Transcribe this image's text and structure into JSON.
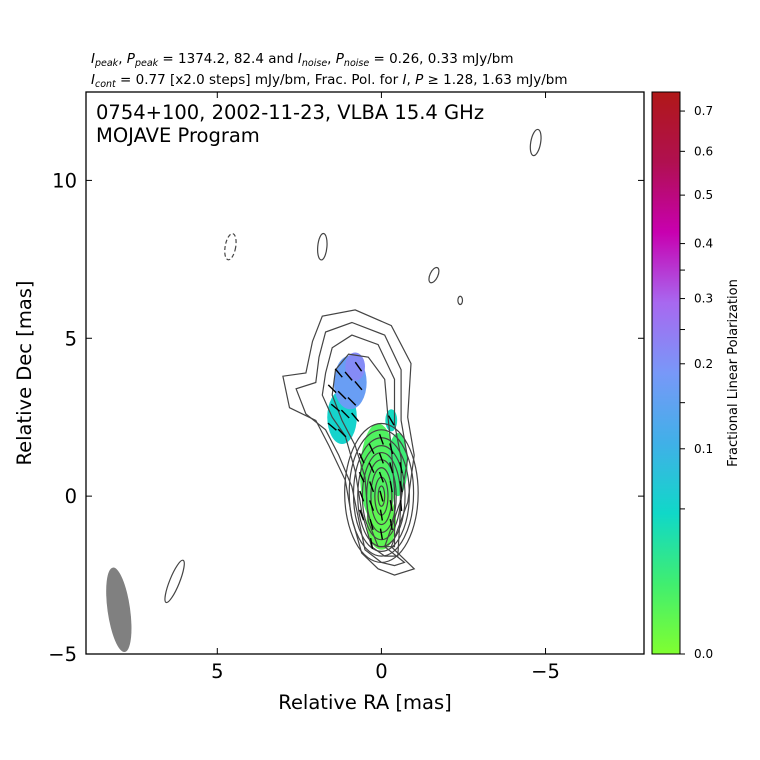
{
  "header": {
    "line1": "I_peak, P_peak = 1374.2, 82.4 and I_noise, P_noise = 0.26, 0.33 mJy/bm",
    "line2": "I_cont = 0.77 [x2.0 steps] mJy/bm, Frac. Pol. for I, P ≥ 1.28, 1.63 mJy/bm"
  },
  "panel_title": [
    "0754+100, 2002-11-23, VLBA 15.4 GHz",
    "MOJAVE Program"
  ],
  "chart_data": {
    "type": "contour",
    "xlabel": "Relative RA [mas]",
    "ylabel": "Relative Dec [mas]",
    "xlim": [
      9,
      -8
    ],
    "ylim": [
      -5,
      12.8
    ],
    "xticks": [
      5,
      0,
      -5
    ],
    "xtick_labels": [
      "5",
      "0",
      "−5"
    ],
    "yticks": [
      -5,
      0,
      5,
      10
    ],
    "ytick_labels": [
      "−5",
      "0",
      "5",
      "10"
    ],
    "beam": {
      "x": 8.0,
      "y": -3.6,
      "major_mas": 1.35,
      "minor_mas": 0.55,
      "pa_deg": -8
    },
    "core_contours": {
      "center": [
        0.0,
        0.0
      ],
      "levels": [
        {
          "dx": 0.0,
          "dy": 0.1,
          "semi_x": 1.12,
          "semi_y": 2.2
        },
        {
          "dx": 0.0,
          "dy": 0.1,
          "semi_x": 0.98,
          "semi_y": 2.0
        },
        {
          "dx": 0.0,
          "dy": 0.05,
          "semi_x": 0.85,
          "semi_y": 1.8
        },
        {
          "dx": 0.0,
          "dy": 0.0,
          "semi_x": 0.72,
          "semi_y": 1.6
        },
        {
          "dx": 0.0,
          "dy": 0.0,
          "semi_x": 0.58,
          "semi_y": 1.38
        },
        {
          "dx": 0.0,
          "dy": 0.0,
          "semi_x": 0.45,
          "semi_y": 1.15
        },
        {
          "dx": 0.0,
          "dy": 0.0,
          "semi_x": 0.32,
          "semi_y": 0.9
        },
        {
          "dx": 0.0,
          "dy": 0.0,
          "semi_x": 0.2,
          "semi_y": 0.6
        },
        {
          "dx": 0.0,
          "dy": 0.0,
          "semi_x": 0.1,
          "semi_y": 0.32
        }
      ]
    },
    "extended_contours": [
      [
        [
          -1.0,
          -2.3
        ],
        [
          -0.3,
          -1.6
        ],
        [
          -0.8,
          -0.2
        ],
        [
          -1.0,
          1.3
        ],
        [
          -0.8,
          2.5
        ],
        [
          -0.9,
          4.2
        ],
        [
          -0.3,
          5.4
        ],
        [
          0.8,
          5.9
        ],
        [
          1.8,
          5.7
        ],
        [
          2.1,
          4.9
        ],
        [
          2.3,
          3.9
        ],
        [
          3.0,
          3.8
        ],
        [
          2.8,
          2.8
        ],
        [
          2.0,
          2.4
        ],
        [
          1.6,
          1.6
        ],
        [
          1.1,
          0.5
        ],
        [
          0.9,
          -0.7
        ],
        [
          0.6,
          -1.8
        ],
        [
          0.1,
          -2.3
        ],
        [
          -0.4,
          -2.5
        ],
        [
          -1.0,
          -2.3
        ]
      ],
      [
        [
          -0.7,
          -2.1
        ],
        [
          -0.1,
          -1.6
        ],
        [
          -0.6,
          -0.1
        ],
        [
          -0.8,
          1.2
        ],
        [
          -0.6,
          2.4
        ],
        [
          -0.6,
          4.0
        ],
        [
          -0.1,
          5.1
        ],
        [
          0.9,
          5.5
        ],
        [
          1.7,
          5.2
        ],
        [
          1.9,
          4.4
        ],
        [
          2.0,
          3.6
        ],
        [
          2.6,
          3.4
        ],
        [
          2.3,
          2.6
        ],
        [
          1.7,
          2.1
        ],
        [
          1.3,
          1.3
        ],
        [
          0.9,
          0.3
        ],
        [
          0.7,
          -0.7
        ],
        [
          0.5,
          -1.7
        ],
        [
          0.0,
          -2.1
        ],
        [
          -0.4,
          -2.2
        ],
        [
          -0.7,
          -2.1
        ]
      ],
      [
        [
          -0.5,
          -1.9
        ],
        [
          -0.6,
          -0.1
        ],
        [
          -0.6,
          1.2
        ],
        [
          -0.4,
          2.3
        ],
        [
          -0.4,
          3.7
        ],
        [
          0.1,
          4.8
        ],
        [
          0.9,
          5.1
        ],
        [
          1.5,
          4.7
        ],
        [
          1.7,
          3.9
        ],
        [
          1.8,
          3.2
        ],
        [
          1.5,
          2.5
        ],
        [
          1.1,
          1.9
        ],
        [
          0.8,
          0.8
        ],
        [
          0.6,
          -0.5
        ],
        [
          0.3,
          -1.6
        ],
        [
          -0.1,
          -1.9
        ],
        [
          -0.5,
          -1.9
        ]
      ],
      [
        [
          -0.4,
          -1.6
        ],
        [
          -0.4,
          0.2
        ],
        [
          -0.3,
          1.5
        ],
        [
          -0.2,
          2.5
        ],
        [
          -0.1,
          3.7
        ],
        [
          0.4,
          4.4
        ],
        [
          1.0,
          4.5
        ],
        [
          1.4,
          4.0
        ],
        [
          1.5,
          3.2
        ],
        [
          1.2,
          2.4
        ],
        [
          0.8,
          1.6
        ],
        [
          0.5,
          0.6
        ],
        [
          0.4,
          -0.8
        ],
        [
          0.1,
          -1.6
        ],
        [
          -0.4,
          -1.6
        ]
      ]
    ],
    "small_contours": [
      {
        "x": -4.7,
        "y": 11.2,
        "rx": 0.15,
        "ry": 0.42,
        "rot": 10,
        "dashed": false
      },
      {
        "x": 1.8,
        "y": 7.9,
        "rx": 0.14,
        "ry": 0.42,
        "rot": 5,
        "dashed": false
      },
      {
        "x": 4.6,
        "y": 7.9,
        "rx": 0.16,
        "ry": 0.42,
        "rot": 10,
        "dashed": true
      },
      {
        "x": -1.6,
        "y": 7.0,
        "rx": 0.12,
        "ry": 0.26,
        "rot": 25,
        "dashed": false
      },
      {
        "x": -2.4,
        "y": 6.2,
        "rx": 0.07,
        "ry": 0.13,
        "rot": 0,
        "dashed": false
      },
      {
        "x": 6.3,
        "y": -2.7,
        "rx": 0.15,
        "ry": 0.72,
        "rot": 22,
        "dashed": false
      }
    ],
    "fractional_polarization": {
      "colorbar_label": "Fractional Linear Polarization",
      "colorbar_ticks": [
        0.0,
        0.1,
        0.2,
        0.3,
        0.4,
        0.5,
        0.6,
        0.7
      ],
      "colorbar_range": [
        0.0,
        0.75
      ],
      "colormap_stops": [
        "#80ff30",
        "#40ee70",
        "#10d8c8",
        "#40b0e8",
        "#7898f8",
        "#a868f0",
        "#c800b0",
        "#b01050",
        "#b01818"
      ],
      "patches": [
        {
          "x": 1.2,
          "y": 2.5,
          "rx": 0.45,
          "ry": 0.85,
          "fp": 0.2
        },
        {
          "x": 0.95,
          "y": 3.6,
          "rx": 0.5,
          "ry": 0.85,
          "fp": 0.35
        },
        {
          "x": 0.8,
          "y": 4.1,
          "rx": 0.3,
          "ry": 0.45,
          "fp": 0.4
        },
        {
          "x": 0.1,
          "y": 0.7,
          "rx": 0.55,
          "ry": 1.6,
          "fp": 0.07
        },
        {
          "x": 0.0,
          "y": -0.8,
          "rx": 0.45,
          "ry": 0.9,
          "fp": 0.05
        },
        {
          "x": -0.5,
          "y": 1.0,
          "rx": 0.3,
          "ry": 1.0,
          "fp": 0.1
        },
        {
          "x": -0.3,
          "y": 2.4,
          "rx": 0.18,
          "ry": 0.35,
          "fp": 0.18
        }
      ]
    },
    "evpa_vectors": [
      {
        "x": 1.5,
        "y": 3.4,
        "angle": 135
      },
      {
        "x": 1.2,
        "y": 3.2,
        "angle": 135
      },
      {
        "x": 0.9,
        "y": 3.0,
        "angle": 135
      },
      {
        "x": 1.4,
        "y": 2.8,
        "angle": 140
      },
      {
        "x": 1.1,
        "y": 2.6,
        "angle": 135
      },
      {
        "x": 0.8,
        "y": 2.5,
        "angle": 130
      },
      {
        "x": 1.5,
        "y": 2.2,
        "angle": 140
      },
      {
        "x": 1.2,
        "y": 2.0,
        "angle": 135
      },
      {
        "x": 1.0,
        "y": 3.8,
        "angle": 130
      },
      {
        "x": 0.7,
        "y": 3.5,
        "angle": 130
      },
      {
        "x": 1.3,
        "y": 3.9,
        "angle": 130
      },
      {
        "x": 0.7,
        "y": 4.1,
        "angle": 125
      },
      {
        "x": 0.6,
        "y": 1.2,
        "angle": 115
      },
      {
        "x": 0.6,
        "y": 0.6,
        "angle": 115
      },
      {
        "x": 0.6,
        "y": 0.0,
        "angle": 110
      },
      {
        "x": 0.6,
        "y": -0.6,
        "angle": 110
      },
      {
        "x": 0.3,
        "y": 1.5,
        "angle": 115
      },
      {
        "x": 0.3,
        "y": 0.9,
        "angle": 115
      },
      {
        "x": 0.3,
        "y": 0.3,
        "angle": 110
      },
      {
        "x": 0.3,
        "y": -0.3,
        "angle": 110
      },
      {
        "x": 0.3,
        "y": -0.9,
        "angle": 105
      },
      {
        "x": 0.3,
        "y": -1.5,
        "angle": 100
      },
      {
        "x": 0.0,
        "y": 1.8,
        "angle": 110
      },
      {
        "x": 0.0,
        "y": 1.2,
        "angle": 110
      },
      {
        "x": 0.0,
        "y": 0.6,
        "angle": 110
      },
      {
        "x": 0.0,
        "y": 0.0,
        "angle": 105
      },
      {
        "x": 0.0,
        "y": -0.6,
        "angle": 100
      },
      {
        "x": 0.0,
        "y": -1.2,
        "angle": 100
      },
      {
        "x": -0.3,
        "y": 1.5,
        "angle": 105
      },
      {
        "x": -0.3,
        "y": 0.9,
        "angle": 105
      },
      {
        "x": -0.3,
        "y": 0.3,
        "angle": 100
      },
      {
        "x": -0.3,
        "y": -0.3,
        "angle": 100
      },
      {
        "x": -0.3,
        "y": -0.9,
        "angle": 100
      },
      {
        "x": -0.6,
        "y": 0.9,
        "angle": 100
      },
      {
        "x": -0.6,
        "y": 0.3,
        "angle": 100
      },
      {
        "x": -0.6,
        "y": -0.3,
        "angle": 95
      },
      {
        "x": -0.3,
        "y": 2.4,
        "angle": 120
      }
    ]
  }
}
